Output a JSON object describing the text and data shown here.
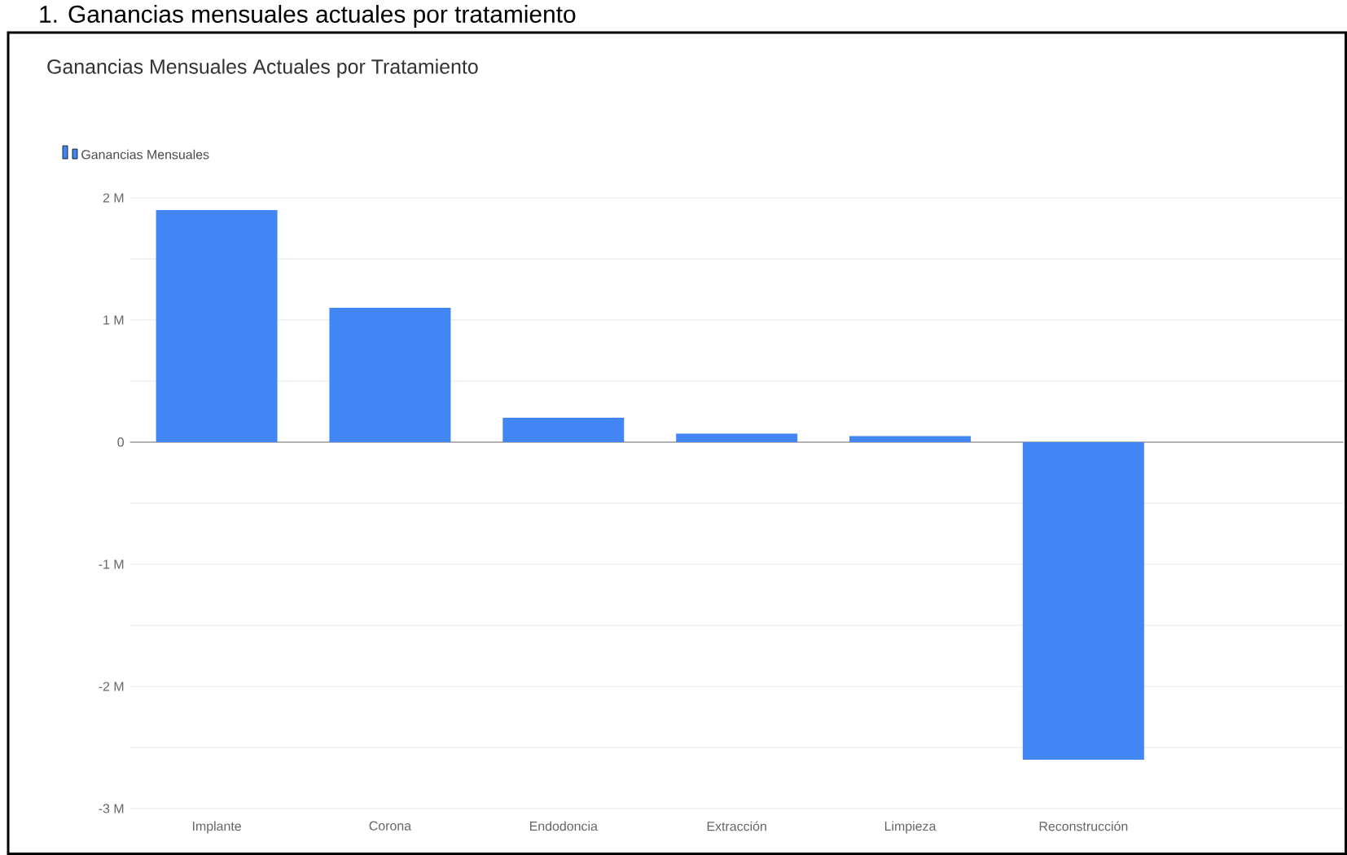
{
  "chart_data": {
    "type": "bar",
    "title": "Ganancias Mensuales Actuales por Tratamiento",
    "annotations": [
      "1. Ganancias mensuales actuales por tratamiento"
    ],
    "categories": [
      "Implante",
      "Corona",
      "Endodoncia",
      "Extracción",
      "Limpieza",
      "Reconstrucción"
    ],
    "series": [
      {
        "name": "Ganancias Mensuales",
        "color": "#4285f4",
        "values": [
          1900000,
          1100000,
          200000,
          70000,
          50000,
          -2600000
        ]
      }
    ],
    "ylim": [
      -3000000,
      2000000
    ],
    "yticks": [
      {
        "value": -3000000,
        "label": "-3 M"
      },
      {
        "value": -2500000,
        "label": null
      },
      {
        "value": -2000000,
        "label": "-2 M"
      },
      {
        "value": -1500000,
        "label": null
      },
      {
        "value": -1000000,
        "label": "-1 M"
      },
      {
        "value": -500000,
        "label": null
      },
      0,
      {
        "value": 500000,
        "label": null
      },
      {
        "value": 1000000,
        "label": "1 M"
      },
      {
        "value": 1500000,
        "label": null
      },
      {
        "value": 2000000,
        "label": "2 M"
      }
    ],
    "grid": "y",
    "legend": "top left"
  }
}
